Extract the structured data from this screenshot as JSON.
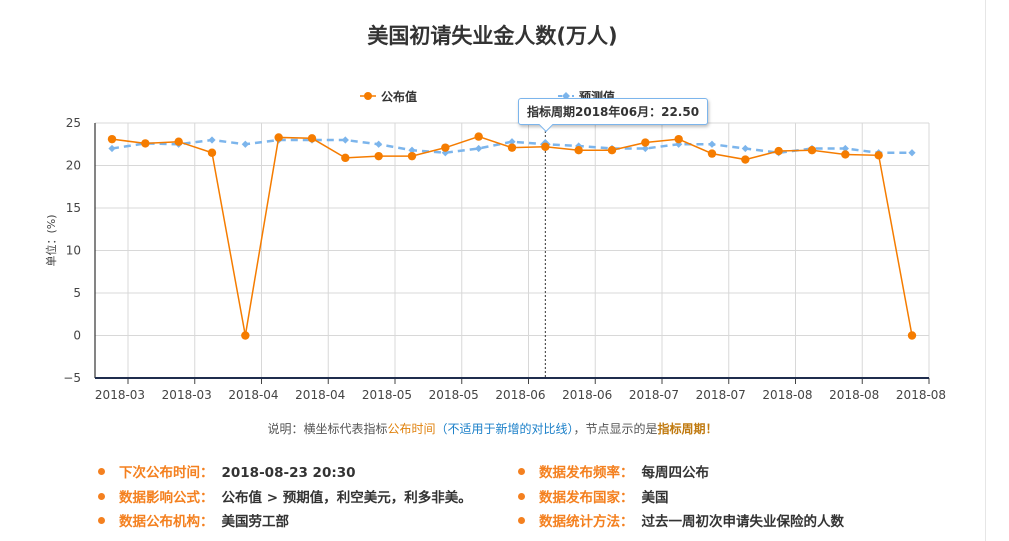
{
  "title": "美国初请失业金人数(万人)",
  "legend": {
    "published": "公布值",
    "forecast": "预测值"
  },
  "tooltip": "指标周期2018年06月：22.50",
  "note": {
    "prefix": "说明：横坐标代表指标",
    "publish_time": "公布时间",
    "not_applicable": "（不适用于新增的对比线）",
    "middle": "，节点显示的是",
    "period": "指标周期",
    "exclaim": "！"
  },
  "info": {
    "next_release_label": "下次公布时间：",
    "next_release_value": "2018-08-23 20:30",
    "frequency_label": "数据发布频率：",
    "frequency_value": "每周四公布",
    "formula_label": "数据影响公式：",
    "formula_value": "公布值 > 预期值，利空美元，利多非美。",
    "country_label": "数据发布国家：",
    "country_value": "美国",
    "agency_label": "数据公布机构：",
    "agency_value": "美国劳工部",
    "method_label": "数据统计方法：",
    "method_value": "过去一周初次申请失业保险的人数"
  },
  "chart_data": {
    "type": "line",
    "ylabel": "单位：(%)",
    "ylim": [
      -5,
      25
    ],
    "yticks": [
      -5,
      0,
      5,
      10,
      15,
      20,
      25
    ],
    "x_tick_labels": [
      "2018-03",
      "2018-03",
      "2018-04",
      "2018-04",
      "2018-05",
      "2018-05",
      "2018-06",
      "2018-06",
      "2018-07",
      "2018-07",
      "2018-08",
      "2018-08",
      "2018-08"
    ],
    "grid": true,
    "legend_position": "top-center",
    "series": [
      {
        "name": "公布值",
        "color": "#f57c00",
        "style": "solid",
        "values": [
          23.1,
          22.6,
          22.8,
          21.5,
          0,
          23.3,
          23.2,
          20.9,
          21.1,
          21.1,
          22.1,
          23.4,
          22.1,
          22.2,
          21.8,
          21.8,
          22.7,
          23.1,
          21.4,
          20.7,
          21.7,
          21.8,
          21.3,
          21.2,
          0
        ]
      },
      {
        "name": "预测值",
        "color": "#7cb5ec",
        "style": "dashed",
        "values": [
          22.0,
          22.6,
          22.5,
          23.0,
          22.5,
          23.0,
          23.0,
          23.0,
          22.5,
          21.8,
          21.5,
          22.0,
          22.8,
          22.5,
          22.3,
          22.0,
          22.0,
          22.5,
          22.5,
          22.0,
          21.5,
          22.0,
          22.0,
          21.5,
          21.5
        ]
      }
    ],
    "highlight_index": 13
  },
  "colors": {
    "published": "#f57c00",
    "forecast": "#7cb5ec",
    "accent": "#f4801f"
  }
}
